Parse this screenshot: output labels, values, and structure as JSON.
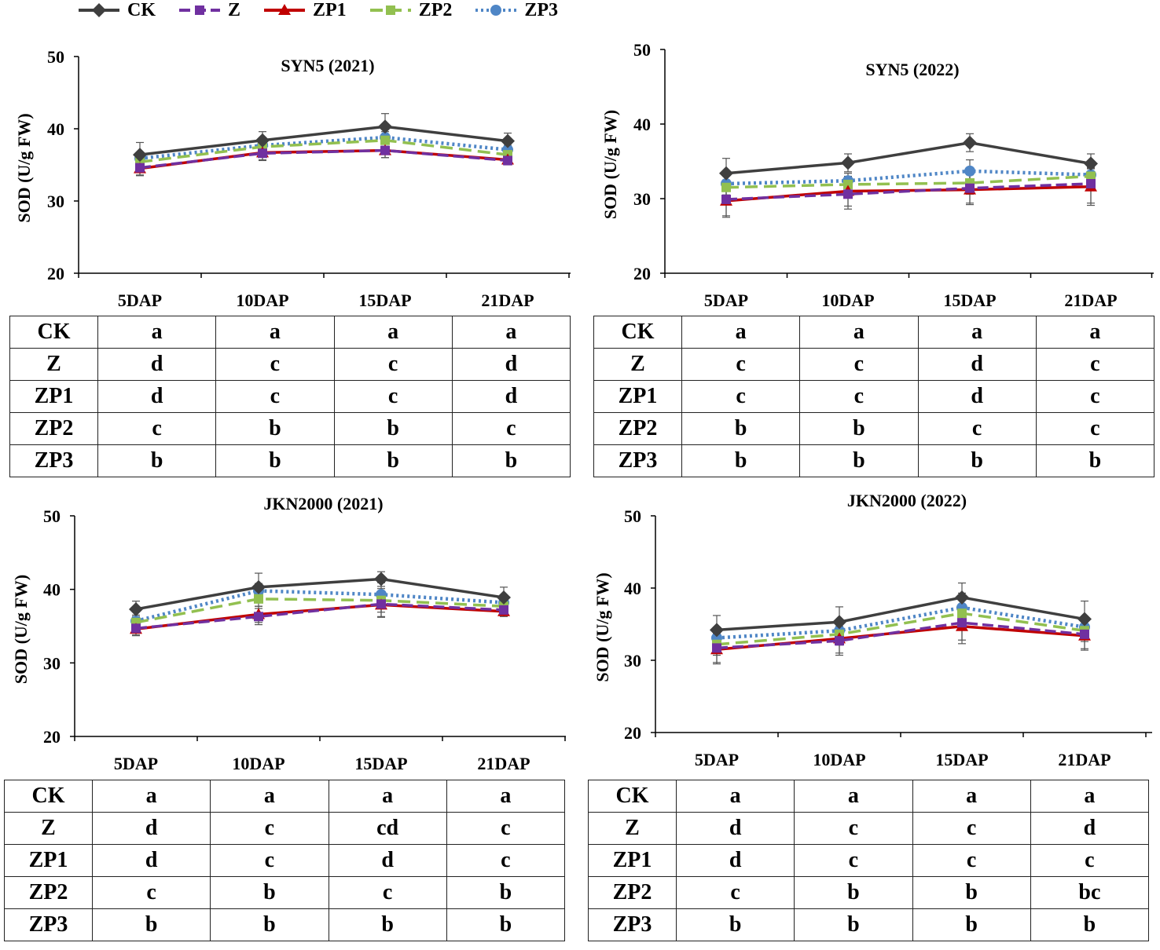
{
  "legend": [
    {
      "name": "CK",
      "color": "#3f3f3f",
      "marker": "diamond",
      "dash": "solid"
    },
    {
      "name": "Z",
      "color": "#7030a0",
      "marker": "square",
      "dash": "long-dash"
    },
    {
      "name": "ZP1",
      "color": "#c00000",
      "marker": "triangle",
      "dash": "solid"
    },
    {
      "name": "ZP2",
      "color": "#92c050",
      "marker": "square",
      "dash": "dash"
    },
    {
      "name": "ZP3",
      "color": "#4f86c6",
      "marker": "circle",
      "dash": "dot"
    }
  ],
  "chart_data": [
    {
      "type": "line",
      "title": "SYN5 (2021)",
      "ylabel": "SOD (U/g FW)",
      "xlabel": "",
      "categories": [
        "5DAP",
        "10DAP",
        "15DAP",
        "21DAP"
      ],
      "ylim": [
        20,
        50
      ],
      "yticks": [
        20,
        30,
        40,
        50
      ],
      "series": [
        {
          "name": "CK",
          "values": [
            36.4,
            38.4,
            40.3,
            38.3
          ],
          "errors": [
            1.7,
            1.2,
            1.8,
            1.1
          ]
        },
        {
          "name": "Z",
          "values": [
            34.6,
            36.6,
            37.0,
            35.6
          ],
          "errors": [
            1.0,
            1.0,
            1.0,
            0.6
          ]
        },
        {
          "name": "ZP1",
          "values": [
            34.5,
            36.7,
            37.0,
            35.7
          ],
          "errors": [
            1.0,
            1.0,
            1.0,
            0.6
          ]
        },
        {
          "name": "ZP2",
          "values": [
            35.4,
            37.5,
            38.4,
            36.4
          ],
          "errors": [
            0.8,
            0.8,
            0.8,
            0.6
          ]
        },
        {
          "name": "ZP3",
          "values": [
            35.9,
            37.7,
            38.8,
            37.1
          ],
          "errors": [
            0.8,
            0.8,
            0.8,
            0.6
          ]
        }
      ],
      "table": {
        "rows": [
          {
            "label": "CK",
            "cells": [
              "a",
              "a",
              "a",
              "a"
            ]
          },
          {
            "label": "Z",
            "cells": [
              "d",
              "c",
              "c",
              "d"
            ]
          },
          {
            "label": "ZP1",
            "cells": [
              "d",
              "c",
              "c",
              "d"
            ]
          },
          {
            "label": "ZP2",
            "cells": [
              "c",
              "b",
              "b",
              "c"
            ]
          },
          {
            "label": "ZP3",
            "cells": [
              "b",
              "b",
              "b",
              "b"
            ]
          }
        ]
      }
    },
    {
      "type": "line",
      "title": "SYN5 (2022)",
      "ylabel": "SOD (U/g FW)",
      "xlabel": "",
      "categories": [
        "5DAP",
        "10DAP",
        "15DAP",
        "21DAP"
      ],
      "ylim": [
        20,
        50
      ],
      "yticks": [
        20,
        30,
        40,
        50
      ],
      "series": [
        {
          "name": "CK",
          "values": [
            33.4,
            34.8,
            37.5,
            34.7
          ],
          "errors": [
            2.0,
            1.2,
            1.2,
            1.3
          ]
        },
        {
          "name": "Z",
          "values": [
            29.9,
            30.6,
            31.4,
            32.0
          ],
          "errors": [
            2.2,
            2.0,
            2.0,
            2.6
          ]
        },
        {
          "name": "ZP1",
          "values": [
            29.7,
            31.0,
            31.2,
            31.6
          ],
          "errors": [
            2.2,
            2.0,
            2.0,
            2.5
          ]
        },
        {
          "name": "ZP2",
          "values": [
            31.5,
            31.9,
            32.1,
            33.0
          ],
          "errors": [
            1.0,
            1.0,
            1.5,
            1.0
          ]
        },
        {
          "name": "ZP3",
          "values": [
            32.0,
            32.4,
            33.7,
            33.2
          ],
          "errors": [
            1.0,
            1.0,
            1.5,
            1.0
          ]
        }
      ],
      "table": {
        "rows": [
          {
            "label": "CK",
            "cells": [
              "a",
              "a",
              "a",
              "a"
            ]
          },
          {
            "label": "Z",
            "cells": [
              "c",
              "c",
              "d",
              "c"
            ]
          },
          {
            "label": "ZP1",
            "cells": [
              "c",
              "c",
              "d",
              "c"
            ]
          },
          {
            "label": "ZP2",
            "cells": [
              "b",
              "b",
              "c",
              "c"
            ]
          },
          {
            "label": "ZP3",
            "cells": [
              "b",
              "b",
              "b",
              "b"
            ]
          }
        ]
      }
    },
    {
      "type": "line",
      "title": "JKN2000 (2021)",
      "ylabel": "SOD (U/g FW)",
      "xlabel": "",
      "categories": [
        "5DAP",
        "10DAP",
        "15DAP",
        "21DAP"
      ],
      "ylim": [
        20,
        50
      ],
      "yticks": [
        20,
        30,
        40,
        50
      ],
      "series": [
        {
          "name": "CK",
          "values": [
            37.3,
            40.3,
            41.4,
            38.9
          ],
          "errors": [
            1.1,
            1.9,
            1.0,
            1.4
          ]
        },
        {
          "name": "Z",
          "values": [
            34.7,
            36.3,
            38.0,
            37.2
          ],
          "errors": [
            0.9,
            1.1,
            1.7,
            0.7
          ]
        },
        {
          "name": "ZP1",
          "values": [
            34.6,
            36.6,
            37.9,
            37.0
          ],
          "errors": [
            0.9,
            1.1,
            1.7,
            0.7
          ]
        },
        {
          "name": "ZP2",
          "values": [
            35.5,
            38.7,
            38.5,
            37.7
          ],
          "errors": [
            0.8,
            1.0,
            1.6,
            0.7
          ]
        },
        {
          "name": "ZP3",
          "values": [
            35.7,
            39.8,
            39.3,
            38.2
          ],
          "errors": [
            0.8,
            1.0,
            1.6,
            0.7
          ]
        }
      ],
      "table": {
        "rows": [
          {
            "label": "CK",
            "cells": [
              "a",
              "a",
              "a",
              "a"
            ]
          },
          {
            "label": "Z",
            "cells": [
              "d",
              "c",
              "cd",
              "c"
            ]
          },
          {
            "label": "ZP1",
            "cells": [
              "d",
              "c",
              "d",
              "c"
            ]
          },
          {
            "label": "ZP2",
            "cells": [
              "c",
              "b",
              "c",
              "b"
            ]
          },
          {
            "label": "ZP3",
            "cells": [
              "b",
              "b",
              "b",
              "b"
            ]
          }
        ]
      }
    },
    {
      "type": "line",
      "title": "JKN2000 (2022)",
      "ylabel": "SOD (U/g FW)",
      "xlabel": "",
      "categories": [
        "5DAP",
        "10DAP",
        "15DAP",
        "21DAP"
      ],
      "ylim": [
        20,
        50
      ],
      "yticks": [
        20,
        30,
        40,
        50
      ],
      "series": [
        {
          "name": "CK",
          "values": [
            34.2,
            35.3,
            38.7,
            35.7
          ],
          "errors": [
            2.0,
            2.1,
            2.0,
            2.5
          ]
        },
        {
          "name": "Z",
          "values": [
            31.7,
            32.7,
            35.2,
            33.6
          ],
          "errors": [
            2.0,
            2.0,
            2.4,
            2.0
          ]
        },
        {
          "name": "ZP1",
          "values": [
            31.5,
            33.0,
            34.7,
            33.4
          ],
          "errors": [
            2.0,
            2.0,
            2.4,
            2.0
          ]
        },
        {
          "name": "ZP2",
          "values": [
            32.2,
            33.6,
            36.5,
            34.1
          ],
          "errors": [
            1.5,
            1.5,
            2.0,
            1.5
          ]
        },
        {
          "name": "ZP3",
          "values": [
            33.1,
            34.1,
            37.3,
            34.6
          ],
          "errors": [
            1.5,
            1.5,
            2.0,
            1.5
          ]
        }
      ],
      "table": {
        "rows": [
          {
            "label": "CK",
            "cells": [
              "a",
              "a",
              "a",
              "a"
            ]
          },
          {
            "label": "Z",
            "cells": [
              "d",
              "c",
              "c",
              "d"
            ]
          },
          {
            "label": "ZP1",
            "cells": [
              "d",
              "c",
              "c",
              "c"
            ]
          },
          {
            "label": "ZP2",
            "cells": [
              "c",
              "b",
              "b",
              "bc"
            ]
          },
          {
            "label": "ZP3",
            "cells": [
              "b",
              "b",
              "b",
              "b"
            ]
          }
        ]
      }
    }
  ]
}
